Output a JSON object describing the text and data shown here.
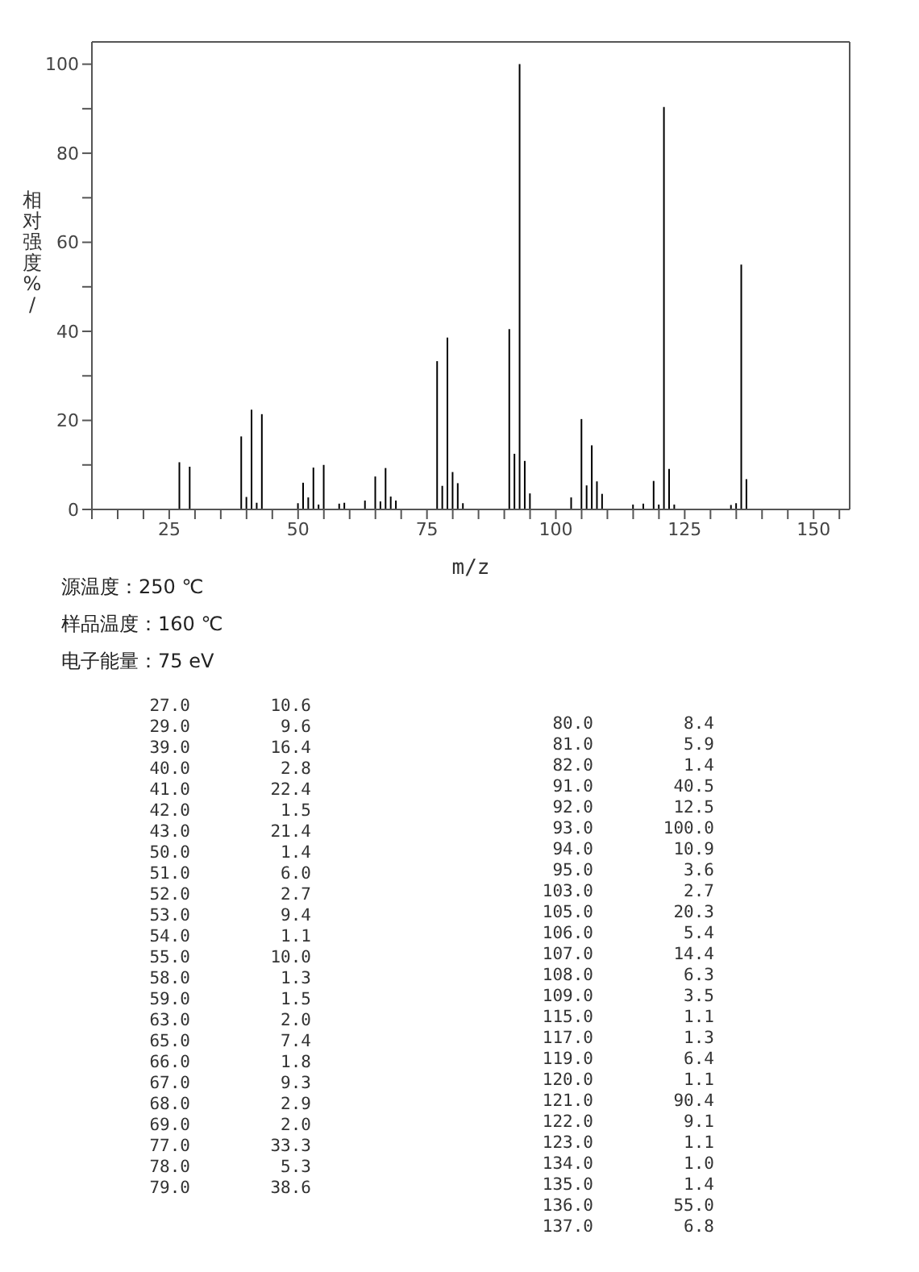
{
  "chart_data": [
    {
      "type": "bar",
      "ylabel": "相对强度%/",
      "xlabel": "m/z",
      "x": [
        27,
        29,
        39,
        40,
        41,
        42,
        43,
        50,
        51,
        52,
        53,
        54,
        55,
        58,
        59,
        63,
        65,
        66,
        67,
        68,
        69,
        77,
        78,
        79,
        80,
        81,
        82,
        91,
        92,
        93,
        94,
        95,
        103,
        105,
        106,
        107,
        108,
        109,
        115,
        117,
        119,
        120,
        121,
        122,
        123,
        134,
        135,
        136,
        137
      ],
      "values": [
        10.6,
        9.6,
        16.4,
        2.8,
        22.4,
        1.5,
        21.4,
        1.4,
        6.0,
        2.7,
        9.4,
        1.1,
        10.0,
        1.3,
        1.5,
        2.0,
        7.4,
        1.8,
        9.3,
        2.9,
        2.0,
        33.3,
        5.3,
        38.6,
        8.4,
        5.9,
        1.4,
        40.5,
        12.5,
        100.0,
        10.9,
        3.6,
        2.7,
        20.3,
        5.4,
        14.4,
        6.3,
        3.5,
        1.1,
        1.3,
        6.4,
        1.1,
        90.4,
        9.1,
        1.1,
        1.0,
        1.4,
        55.0,
        6.8
      ],
      "color": "#000000",
      "xlim": [
        10,
        157
      ],
      "xticks": [
        {
          "value": 10,
          "label": null
        },
        {
          "value": 15,
          "label": null
        },
        {
          "value": 20,
          "label": null
        },
        25,
        {
          "value": 30,
          "label": null
        },
        {
          "value": 35,
          "label": null
        },
        {
          "value": 40,
          "label": null
        },
        {
          "value": 45,
          "label": null
        },
        50,
        {
          "value": 55,
          "label": null
        },
        {
          "value": 60,
          "label": null
        },
        {
          "value": 65,
          "label": null
        },
        {
          "value": 70,
          "label": null
        },
        75,
        {
          "value": 80,
          "label": null
        },
        {
          "value": 85,
          "label": null
        },
        {
          "value": 90,
          "label": null
        },
        {
          "value": 95,
          "label": null
        },
        100,
        {
          "value": 105,
          "label": null
        },
        {
          "value": 110,
          "label": null
        },
        {
          "value": 115,
          "label": null
        },
        {
          "value": 120,
          "label": null
        },
        125,
        {
          "value": 130,
          "label": null
        },
        {
          "value": 135,
          "label": null
        },
        {
          "value": 140,
          "label": null
        },
        {
          "value": 145,
          "label": null
        },
        150,
        {
          "value": 155,
          "label": null
        }
      ],
      "ylim": [
        0,
        105
      ],
      "yticks": [
        0,
        {
          "value": 10,
          "label": null
        },
        20,
        {
          "value": 30,
          "label": null
        },
        40,
        {
          "value": 50,
          "label": null
        },
        60,
        {
          "value": 70,
          "label": null
        },
        80,
        {
          "value": 90,
          "label": null
        },
        100
      ],
      "annotations": [
        "源温度：250 ℃",
        "样品温度：160 ℃",
        "电子能量：75 eV"
      ]
    },
    {
      "type": "other",
      "categories": [
        "27.0",
        "29.0",
        "39.0",
        "40.0",
        "41.0",
        "42.0",
        "43.0",
        "50.0",
        "51.0",
        "52.0",
        "53.0",
        "54.0",
        "55.0",
        "58.0",
        "59.0",
        "63.0",
        "65.0",
        "66.0",
        "67.0",
        "68.0",
        "69.0",
        "77.0",
        "78.0",
        "79.0",
        "80.0",
        "81.0",
        "82.0",
        "91.0",
        "92.0",
        "93.0",
        "94.0",
        "95.0",
        "103.0",
        "105.0",
        "106.0",
        "107.0",
        "108.0",
        "109.0",
        "115.0",
        "117.0",
        "119.0",
        "120.0",
        "121.0",
        "122.0",
        "123.0",
        "134.0",
        "135.0",
        "136.0",
        "137.0"
      ],
      "value_labels": [
        "10.6",
        "9.6",
        "16.4",
        "2.8",
        "22.4",
        "1.5",
        "21.4",
        "1.4",
        "6.0",
        "2.7",
        "9.4",
        "1.1",
        "10.0",
        "1.3",
        "1.5",
        "2.0",
        "7.4",
        "1.8",
        "9.3",
        "2.9",
        "2.0",
        "33.3",
        "5.3",
        "38.6",
        "8.4",
        "5.9",
        "1.4",
        "40.5",
        "12.5",
        "100.0",
        "10.9",
        "3.6",
        "2.7",
        "20.3",
        "5.4",
        "14.4",
        "6.3",
        "3.5",
        "1.1",
        "1.3",
        "6.4",
        "1.1",
        "90.4",
        "9.1",
        "1.1",
        "1.0",
        "1.4",
        "55.0",
        "6.8"
      ]
    }
  ]
}
